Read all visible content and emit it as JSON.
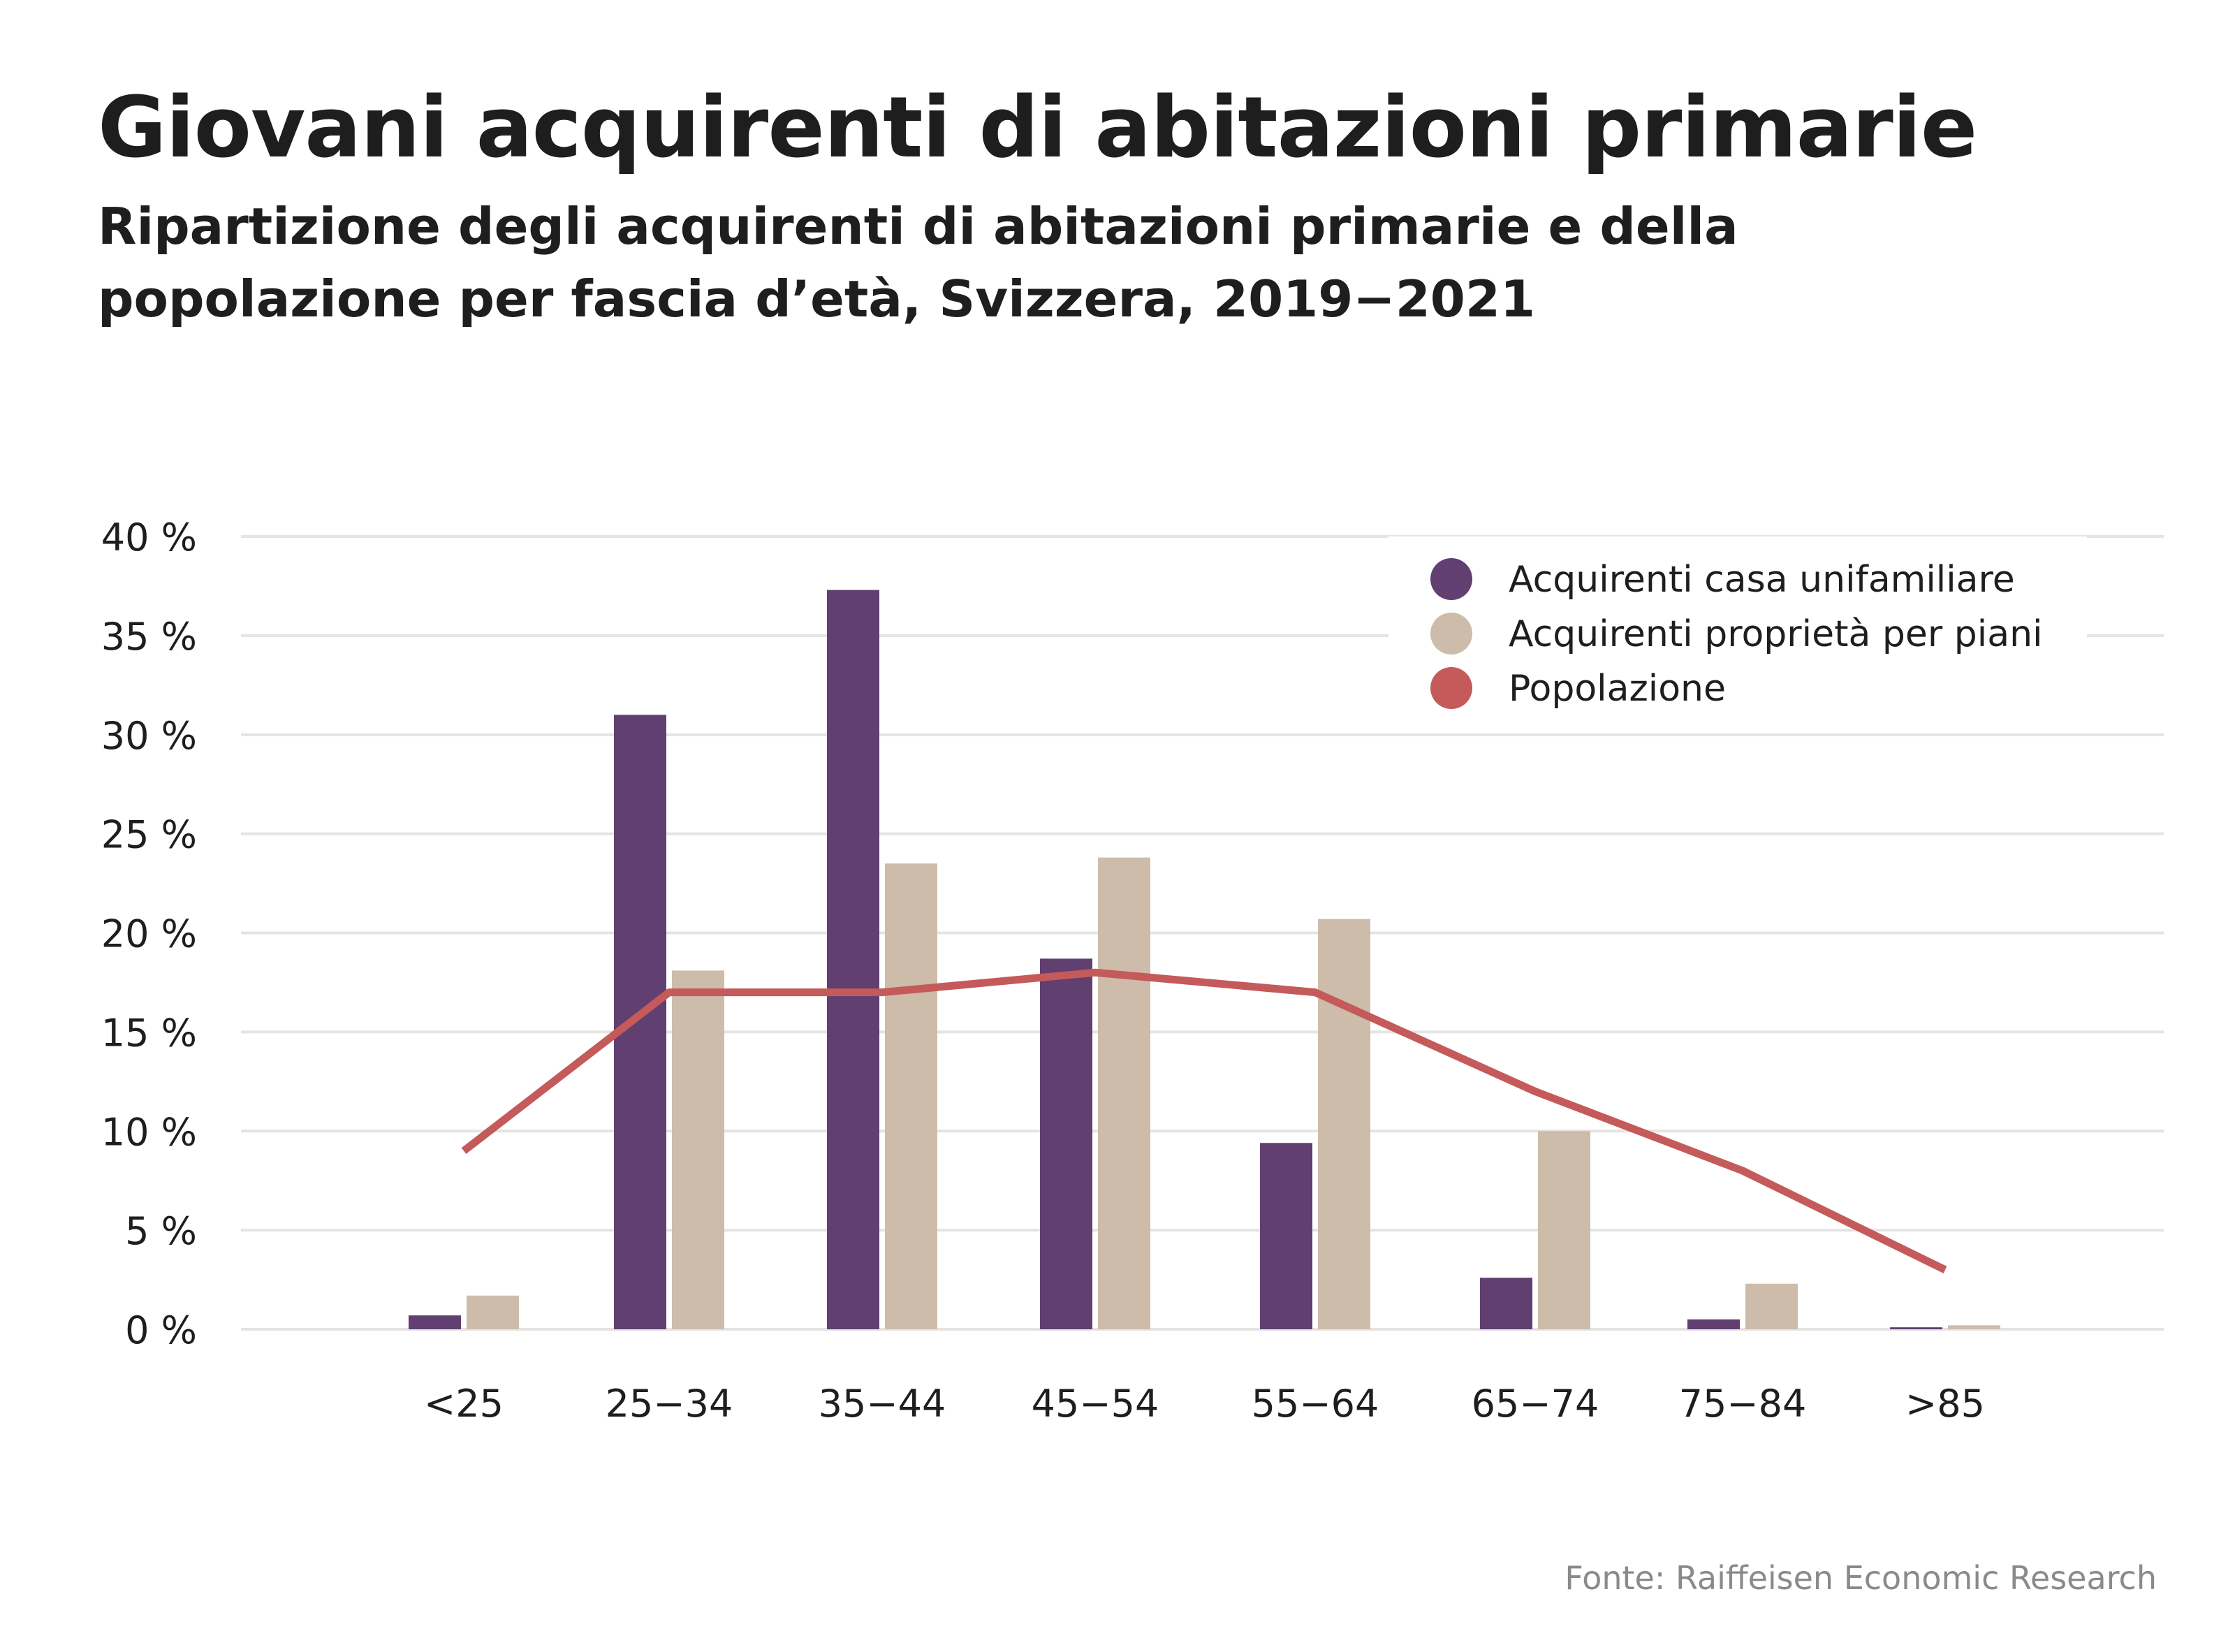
{
  "title": "Giovani acquirenti di abitazioni primarie",
  "subtitle_line1": "Ripartizione degli acquirenti di abitazioni primarie e della",
  "subtitle_line2": "popolazione per fascia d’età, Svizzera, 2019−2021",
  "source": "Fonte: Raiffeisen Economic Research",
  "colors": {
    "casa_unifamiliare": "#613f70",
    "proprieta_per_piani": "#cdbcaa",
    "popolazione": "#c45a5a",
    "grid": "#e4e4e4",
    "text": "#1e1e1e"
  },
  "chart_data": {
    "type": "bar",
    "title": "Giovani acquirenti di abitazioni primarie",
    "categories": [
      "<25",
      "25−34",
      "35−44",
      "45−54",
      "55−64",
      "65−74",
      "75−84",
      ">85"
    ],
    "series": [
      {
        "name": "Acquirenti casa unifamiliare",
        "type": "bar",
        "color": "#613f70",
        "values": [
          0.7,
          31.0,
          37.3,
          18.7,
          9.4,
          2.6,
          0.5,
          0.1
        ]
      },
      {
        "name": "Acquirenti proprietà per piani",
        "type": "bar",
        "color": "#cdbcaa",
        "values": [
          1.7,
          18.1,
          23.5,
          23.8,
          20.7,
          10.0,
          2.3,
          0.2
        ]
      },
      {
        "name": "Popolazione",
        "type": "line",
        "color": "#c45a5a",
        "values": [
          9,
          17,
          17,
          18,
          17,
          12,
          8,
          3
        ]
      }
    ],
    "ylim": [
      0,
      40
    ],
    "yticks": [
      0,
      5,
      10,
      15,
      20,
      25,
      30,
      35,
      40
    ],
    "ytick_labels": [
      "0 %",
      "5 %",
      "10 %",
      "15 %",
      "20 %",
      "25 %",
      "30 %",
      "35 %",
      "40 %"
    ],
    "xlabel": "",
    "ylabel": "",
    "grid": true,
    "legend_position": "top-right"
  }
}
